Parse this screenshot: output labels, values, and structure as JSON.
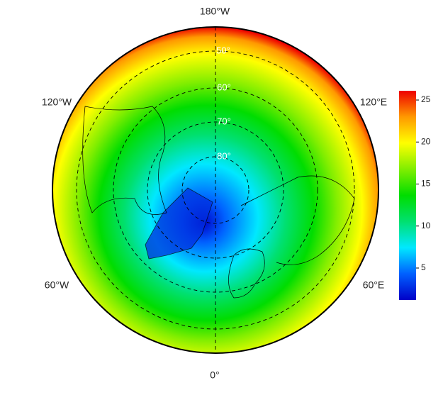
{
  "map": {
    "longitude_labels": [
      "180°W",
      "120°W",
      "120°E",
      "60°W",
      "60°E",
      "0°"
    ],
    "latitude_labels": [
      "50°",
      "60°",
      "70°",
      "80°"
    ],
    "colorbar": {
      "lim": [
        1.2,
        26.1
      ],
      "ticks": [
        5,
        10,
        15,
        20,
        25
      ],
      "colors": [
        "#0000c8",
        "#0060ff",
        "#00e8ff",
        "#00e070",
        "#00dd00",
        "#80ee00",
        "#ffff00",
        "#ff9900",
        "#ee0000"
      ]
    }
  }
}
